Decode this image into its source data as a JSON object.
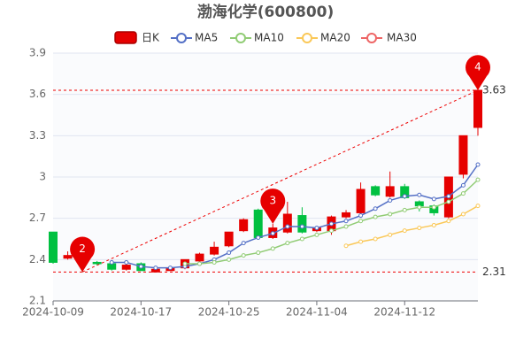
{
  "chart_data": {
    "type": "candlestick",
    "title": "渤海化学(600800)",
    "categories": [
      "2024-10-09",
      null,
      null,
      null,
      null,
      null,
      "2024-10-17",
      null,
      null,
      null,
      null,
      null,
      "2024-10-25",
      null,
      null,
      null,
      null,
      null,
      "2024-11-04",
      null,
      null,
      null,
      null,
      null,
      "2024-11-12",
      null,
      null,
      null,
      null,
      null
    ],
    "candles": {
      "name": "日K",
      "up_color": "#e60000",
      "down_color": "#00c040",
      "open": [
        2.6,
        2.41,
        2.4,
        2.38,
        2.37,
        2.33,
        2.37,
        2.31,
        2.32,
        2.34,
        2.39,
        2.44,
        2.5,
        2.61,
        2.76,
        2.56,
        2.6,
        2.72,
        2.61,
        2.61,
        2.71,
        2.74,
        2.93,
        2.86,
        2.93,
        2.82,
        2.79,
        2.71,
        3.02,
        3.36
      ],
      "high": [
        2.6,
        2.46,
        2.41,
        2.39,
        2.38,
        2.38,
        2.38,
        2.34,
        2.35,
        2.4,
        2.45,
        2.53,
        2.6,
        2.7,
        2.77,
        2.66,
        2.82,
        2.78,
        2.64,
        2.72,
        2.76,
        2.96,
        2.94,
        3.04,
        2.95,
        2.83,
        2.8,
        3.0,
        3.3,
        3.63
      ],
      "low": [
        2.37,
        2.4,
        2.31,
        2.36,
        2.32,
        2.32,
        2.32,
        2.32,
        2.32,
        2.33,
        2.37,
        2.43,
        2.49,
        2.6,
        2.55,
        2.55,
        2.59,
        2.59,
        2.6,
        2.58,
        2.7,
        2.73,
        2.86,
        2.85,
        2.84,
        2.75,
        2.72,
        2.7,
        2.99,
        3.3
      ],
      "close": [
        2.38,
        2.43,
        2.39,
        2.37,
        2.33,
        2.36,
        2.32,
        2.33,
        2.34,
        2.4,
        2.44,
        2.49,
        2.6,
        2.69,
        2.56,
        2.63,
        2.73,
        2.6,
        2.63,
        2.71,
        2.74,
        2.91,
        2.87,
        2.93,
        2.85,
        2.79,
        2.74,
        3.0,
        3.3,
        3.63
      ]
    },
    "series": [
      {
        "name": "MA5",
        "color": "#5470c6",
        "values": [
          null,
          null,
          null,
          null,
          2.38,
          2.38,
          2.35,
          2.34,
          2.34,
          2.35,
          2.37,
          2.4,
          2.45,
          2.52,
          2.56,
          2.59,
          2.64,
          2.64,
          2.63,
          2.66,
          2.68,
          2.72,
          2.77,
          2.83,
          2.86,
          2.87,
          2.84,
          2.86,
          2.94,
          3.09
        ]
      },
      {
        "name": "MA10",
        "color": "#91cc75",
        "values": [
          null,
          null,
          null,
          null,
          null,
          null,
          null,
          null,
          null,
          2.37,
          2.37,
          2.38,
          2.4,
          2.43,
          2.45,
          2.48,
          2.52,
          2.55,
          2.58,
          2.61,
          2.64,
          2.68,
          2.71,
          2.73,
          2.76,
          2.78,
          2.78,
          2.82,
          2.88,
          2.98
        ]
      },
      {
        "name": "MA20",
        "color": "#fac858",
        "values": [
          null,
          null,
          null,
          null,
          null,
          null,
          null,
          null,
          null,
          null,
          null,
          null,
          null,
          null,
          null,
          null,
          null,
          null,
          null,
          null,
          2.5,
          2.53,
          2.55,
          2.58,
          2.61,
          2.63,
          2.65,
          2.68,
          2.73,
          2.79
        ]
      },
      {
        "name": "MA30",
        "color": "#ee6666",
        "values": [
          null,
          null,
          null,
          null,
          null,
          null,
          null,
          null,
          null,
          null,
          null,
          null,
          null,
          null,
          null,
          null,
          null,
          null,
          null,
          null,
          null,
          null,
          null,
          null,
          null,
          null,
          null,
          null,
          null,
          null
        ]
      }
    ],
    "ylim": [
      2.1,
      3.9
    ],
    "yticks": [
      2.1,
      2.4,
      2.7,
      3,
      3.3,
      3.6,
      3.9
    ],
    "grid": true,
    "hlines": [
      3.63,
      2.31
    ],
    "markers": [
      {
        "label": "2",
        "index": 2,
        "value": 2.31
      },
      {
        "label": "3",
        "index": 15,
        "value": 2.66
      },
      {
        "label": "4",
        "index": 29,
        "value": 3.63
      }
    ]
  }
}
